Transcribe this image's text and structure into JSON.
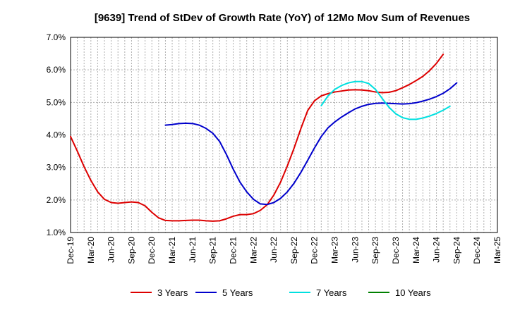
{
  "chart_data": {
    "type": "line",
    "title": "[9639]  Trend of StDev of Growth Rate (YoY) of 12Mo Mov Sum of Revenues",
    "xlabel": "",
    "ylabel": "",
    "ylim": [
      1.0,
      7.0
    ],
    "y_ticks": [
      "1.0%",
      "2.0%",
      "3.0%",
      "4.0%",
      "5.0%",
      "6.0%",
      "7.0%"
    ],
    "x_ticks": [
      "Dec-19",
      "Mar-20",
      "Jun-20",
      "Sep-20",
      "Dec-20",
      "Mar-21",
      "Jun-21",
      "Sep-21",
      "Dec-21",
      "Mar-22",
      "Jun-22",
      "Sep-22",
      "Dec-22",
      "Mar-23",
      "Jun-23",
      "Sep-23",
      "Dec-23",
      "Mar-24",
      "Jun-24",
      "Sep-24",
      "Dec-24",
      "Mar-25"
    ],
    "grid": true,
    "legend": "bottom",
    "series": [
      {
        "name": "3 Years",
        "color": "#dd0000",
        "start": 0,
        "values": [
          3.95,
          3.5,
          3.02,
          2.6,
          2.25,
          2.02,
          1.92,
          1.9,
          1.92,
          1.94,
          1.92,
          1.82,
          1.62,
          1.45,
          1.37,
          1.36,
          1.36,
          1.37,
          1.38,
          1.38,
          1.36,
          1.35,
          1.36,
          1.42,
          1.5,
          1.55,
          1.55,
          1.58,
          1.68,
          1.85,
          2.15,
          2.55,
          3.05,
          3.6,
          4.2,
          4.75,
          5.05,
          5.2,
          5.27,
          5.32,
          5.35,
          5.38,
          5.39,
          5.38,
          5.36,
          5.32,
          5.3,
          5.31,
          5.36,
          5.45,
          5.55,
          5.67,
          5.8,
          5.98,
          6.2,
          6.48
        ]
      },
      {
        "name": "5 Years",
        "color": "#0000cc",
        "start": 14,
        "values": [
          4.3,
          4.32,
          4.35,
          4.36,
          4.35,
          4.3,
          4.2,
          4.05,
          3.8,
          3.4,
          2.95,
          2.55,
          2.25,
          2.02,
          1.88,
          1.86,
          1.92,
          2.05,
          2.25,
          2.52,
          2.85,
          3.22,
          3.6,
          3.95,
          4.22,
          4.4,
          4.55,
          4.68,
          4.8,
          4.88,
          4.94,
          4.97,
          4.98,
          4.97,
          4.96,
          4.95,
          4.96,
          4.99,
          5.04,
          5.1,
          5.18,
          5.28,
          5.42,
          5.6
        ]
      },
      {
        "name": "7 Years",
        "color": "#00e0e0",
        "start": 37,
        "values": [
          4.9,
          5.2,
          5.4,
          5.52,
          5.6,
          5.64,
          5.64,
          5.58,
          5.4,
          5.12,
          4.85,
          4.65,
          4.53,
          4.48,
          4.48,
          4.52,
          4.58,
          4.66,
          4.76,
          4.88
        ]
      },
      {
        "name": "10 Years",
        "color": "#008000",
        "start": 0,
        "values": []
      }
    ]
  }
}
